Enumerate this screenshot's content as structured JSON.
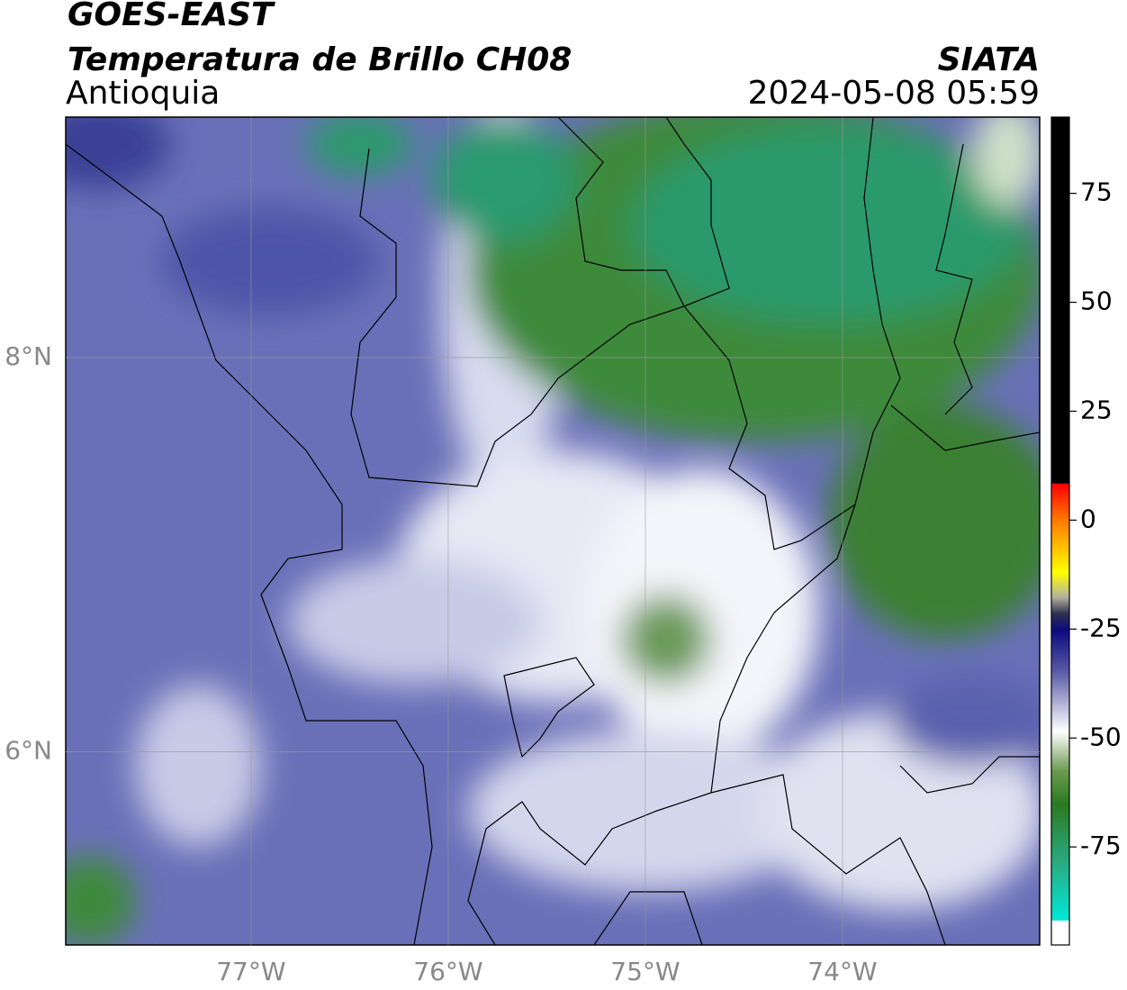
{
  "header": {
    "title": "GOES-EAST",
    "subtitle": "Temperatura de Brillo CH08",
    "region": "Antioquia",
    "source": "SIATA",
    "timestamp": "2024-05-08 05:59"
  },
  "map": {
    "lonlim": [
      -77.94,
      -73.0
    ],
    "latlim": [
      5.02,
      9.22
    ],
    "lon_ticks": [
      {
        "value": -77,
        "label": "77°W"
      },
      {
        "value": -76,
        "label": "76°W"
      },
      {
        "value": -75,
        "label": "75°W"
      },
      {
        "value": -74,
        "label": "74°W"
      }
    ],
    "lat_ticks": [
      {
        "value": 8,
        "label": "8°N"
      },
      {
        "value": 6,
        "label": "6°N"
      }
    ]
  },
  "colorbar": {
    "lim": [
      -97.5,
      92.5
    ],
    "ticks": [
      75,
      50,
      25,
      0,
      -25,
      -50,
      -75
    ]
  }
}
